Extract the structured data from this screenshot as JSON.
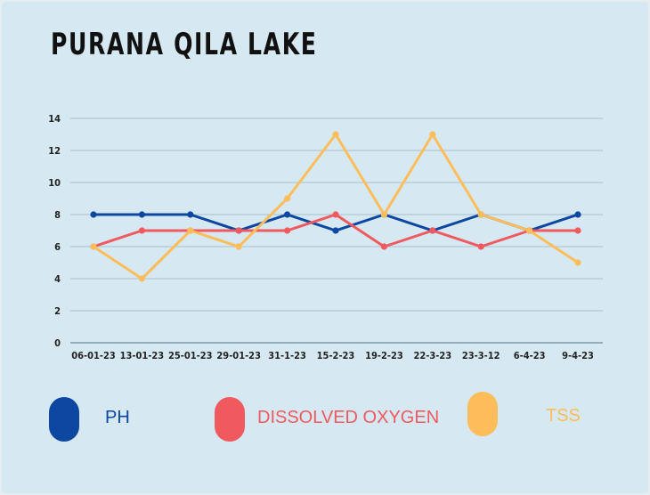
{
  "title": "PURANA QILA LAKE",
  "colors": {
    "ph": "#0d47a1",
    "do": "#f05a5f",
    "tss": "#fdbd5a",
    "grid": "#a9c1cf"
  },
  "chart_data": {
    "type": "line",
    "title": "PURANA QILA LAKE",
    "xlabel": "",
    "ylabel": "",
    "categories": [
      "06-01-23",
      "13-01-23",
      "25-01-23",
      "29-01-23",
      "31-1-23",
      "15-2-23",
      "19-2-23",
      "22-3-23",
      "23-3-12",
      "6-4-23",
      "9-4-23"
    ],
    "ylim": [
      0,
      14
    ],
    "yticks": [
      0,
      2,
      4,
      6,
      8,
      10,
      12,
      14
    ],
    "grid": true,
    "legend_position": "bottom",
    "series": [
      {
        "name": "PH",
        "color": "#0d47a1",
        "values": [
          8,
          8,
          8,
          7,
          8,
          7,
          8,
          7,
          8,
          7,
          8
        ]
      },
      {
        "name": "DISSOLVED OXYGEN",
        "color": "#f05a5f",
        "values": [
          6,
          7,
          7,
          7,
          7,
          8,
          6,
          7,
          6,
          7,
          7
        ]
      },
      {
        "name": "TSS",
        "color": "#fdbd5a",
        "values": [
          6,
          4,
          7,
          6,
          9,
          13,
          8,
          13,
          8,
          7,
          5
        ]
      }
    ]
  },
  "legend": {
    "ph": "PH",
    "do": "DISSOLVED OXYGEN",
    "tss": "TSS"
  }
}
